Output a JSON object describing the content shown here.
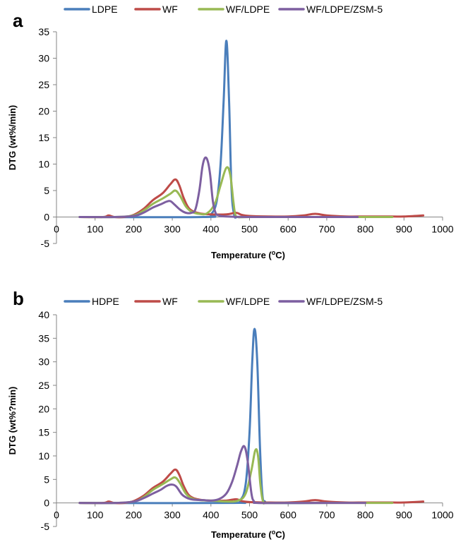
{
  "chart_data": [
    {
      "type": "line",
      "panel_label": "a",
      "xlabel": "Temperature (",
      "xlabel_sup": "o",
      "xlabel_end": "C)",
      "ylabel": "DTG (wt%/min)",
      "xlim": [
        0,
        1000
      ],
      "ylim": [
        -5,
        35
      ],
      "xticks": [
        0,
        100,
        200,
        300,
        400,
        500,
        600,
        700,
        800,
        900,
        1000
      ],
      "yticks": [
        -5,
        0,
        5,
        10,
        15,
        20,
        25,
        30,
        35
      ],
      "grid": false,
      "legend_position": "top",
      "series": [
        {
          "name": "LDPE",
          "color": "#4a7ebb",
          "x": [
            60,
            380,
            400,
            415,
            425,
            433,
            440,
            447,
            453,
            460,
            470,
            500,
            700
          ],
          "y": [
            0,
            0,
            0.5,
            3,
            10,
            22,
            33.3,
            22,
            6,
            0.5,
            0,
            0,
            0
          ]
        },
        {
          "name": "WF",
          "color": "#be4b48",
          "x": [
            60,
            120,
            135,
            150,
            175,
            200,
            225,
            250,
            275,
            295,
            308,
            318,
            330,
            345,
            370,
            400,
            440,
            465,
            480,
            500,
            550,
            600,
            640,
            670,
            700,
            750,
            800,
            850,
            900,
            950
          ],
          "y": [
            0,
            0,
            0.3,
            0,
            0,
            0.4,
            1.5,
            3.2,
            4.5,
            6.2,
            7.1,
            6,
            3.5,
            1.5,
            0.7,
            0.5,
            0.5,
            0.8,
            0.4,
            0.2,
            0.1,
            0.1,
            0.3,
            0.6,
            0.3,
            0.1,
            0.1,
            0.1,
            0.1,
            0.3
          ]
        },
        {
          "name": "WF/LDPE",
          "color": "#98b954",
          "x": [
            60,
            150,
            200,
            225,
            250,
            275,
            295,
            308,
            320,
            335,
            350,
            370,
            390,
            410,
            425,
            440,
            450,
            458,
            463,
            470,
            500,
            600,
            700,
            800,
            870
          ],
          "y": [
            0,
            0,
            0.3,
            1.2,
            2.5,
            3.5,
            4.4,
            5,
            4,
            2,
            1,
            0.6,
            0.7,
            2.5,
            6,
            9.3,
            8,
            3,
            0.5,
            0,
            0,
            0,
            0,
            0,
            0
          ]
        },
        {
          "name": "WF/LDPE/ZSM-5",
          "color": "#7d5fa0",
          "x": [
            60,
            150,
            200,
            225,
            250,
            270,
            285,
            295,
            305,
            320,
            335,
            350,
            360,
            370,
            378,
            385,
            392,
            398,
            405,
            412,
            420,
            440,
            500,
            600,
            700,
            780
          ],
          "y": [
            0,
            0,
            0.2,
            0.8,
            1.8,
            2.4,
            2.9,
            3,
            2.4,
            1.4,
            0.8,
            0.8,
            1.5,
            5,
            9.5,
            11.2,
            10.5,
            8,
            3,
            0.8,
            0.3,
            0.1,
            0,
            0,
            0,
            0
          ]
        }
      ]
    },
    {
      "type": "line",
      "panel_label": "b",
      "xlabel": "Temperature (",
      "xlabel_sup": "o",
      "xlabel_end": "C)",
      "ylabel": "DTG (wt%?min)",
      "xlim": [
        0,
        1000
      ],
      "ylim": [
        -5,
        40
      ],
      "xticks": [
        0,
        100,
        200,
        300,
        400,
        500,
        600,
        700,
        800,
        900,
        1000
      ],
      "yticks": [
        -5,
        0,
        5,
        10,
        15,
        20,
        25,
        30,
        35,
        40
      ],
      "grid": false,
      "legend_position": "top",
      "series": [
        {
          "name": "HDPE",
          "color": "#4a7ebb",
          "x": [
            60,
            450,
            475,
            490,
            500,
            507,
            513,
            520,
            527,
            533,
            540,
            560,
            700
          ],
          "y": [
            0,
            0,
            0.5,
            4,
            15,
            30,
            37,
            30,
            12,
            2,
            0.3,
            0,
            0
          ]
        },
        {
          "name": "WF",
          "color": "#be4b48",
          "x": [
            60,
            120,
            135,
            150,
            175,
            200,
            225,
            250,
            275,
            295,
            308,
            318,
            330,
            345,
            370,
            400,
            440,
            465,
            480,
            500,
            550,
            600,
            640,
            670,
            700,
            750,
            800,
            850,
            900,
            950
          ],
          "y": [
            0,
            0,
            0.3,
            0,
            0,
            0.4,
            1.5,
            3.2,
            4.5,
            6.2,
            7.1,
            6,
            3.5,
            1.5,
            0.7,
            0.5,
            0.5,
            0.8,
            0.4,
            0.2,
            0.1,
            0.1,
            0.3,
            0.6,
            0.3,
            0.1,
            0.1,
            0.1,
            0.1,
            0.3
          ]
        },
        {
          "name": "WF/LDPE",
          "color": "#98b954",
          "x": [
            60,
            150,
            200,
            225,
            250,
            275,
            295,
            308,
            320,
            335,
            350,
            370,
            400,
            440,
            470,
            490,
            505,
            515,
            522,
            528,
            535,
            545,
            600,
            700,
            800,
            870
          ],
          "y": [
            0,
            0,
            0.3,
            1.2,
            2.8,
            4,
            5,
            5.4,
            4.2,
            2,
            1,
            0.6,
            0.5,
            0.3,
            0.5,
            2,
            7,
            11.2,
            10,
            4,
            0.3,
            0,
            0,
            0,
            0,
            0
          ]
        },
        {
          "name": "WF/LDPE/ZSM-5",
          "color": "#7d5fa0",
          "x": [
            60,
            150,
            200,
            225,
            250,
            270,
            285,
            298,
            310,
            325,
            340,
            355,
            380,
            400,
            420,
            440,
            455,
            468,
            478,
            487,
            495,
            505,
            512,
            520,
            600,
            700,
            800
          ],
          "y": [
            0,
            0,
            0.3,
            1,
            2,
            2.8,
            3.6,
            3.9,
            3.5,
            1.8,
            1,
            0.7,
            0.6,
            0.5,
            0.8,
            2,
            4.5,
            8,
            11,
            12,
            9,
            2,
            0.3,
            0,
            0,
            0,
            0
          ]
        }
      ]
    }
  ]
}
